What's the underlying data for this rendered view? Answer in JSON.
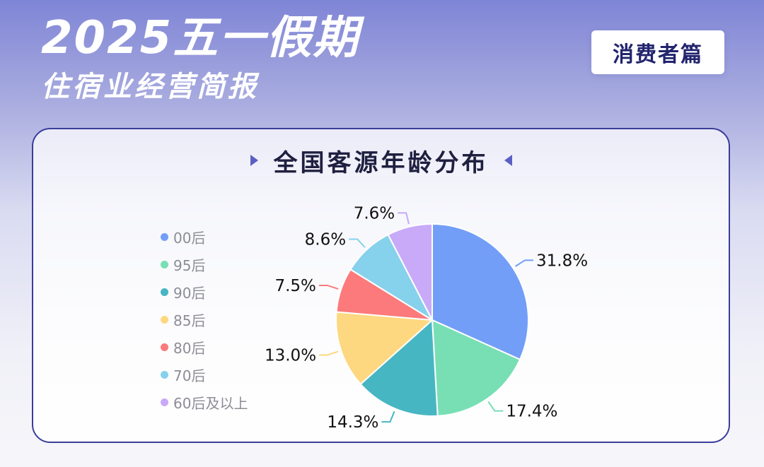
{
  "header": {
    "title": "2025五一假期",
    "subtitle": "住宿业经营简报",
    "badge": "消费者篇"
  },
  "colors": {
    "header_gradient_top": "#7f85d6",
    "card_border": "#3a3d9a",
    "badge_text": "#22246e"
  },
  "chart_data": {
    "type": "pie",
    "title": "全国客源年龄分布",
    "legend_position": "left",
    "categories": [
      "00后",
      "95后",
      "90后",
      "85后",
      "80后",
      "70后",
      "60后及以上"
    ],
    "values": [
      31.8,
      17.4,
      14.3,
      13.0,
      7.5,
      8.6,
      7.6
    ],
    "labels": [
      "31.8%",
      "17.4%",
      "14.3%",
      "13.0%",
      "7.5%",
      "8.6%",
      "7.6%"
    ],
    "colors": [
      "#739ef8",
      "#78dfb5",
      "#47b6c3",
      "#fdd880",
      "#fc7a7b",
      "#86d1ec",
      "#c8aaf9"
    ]
  }
}
